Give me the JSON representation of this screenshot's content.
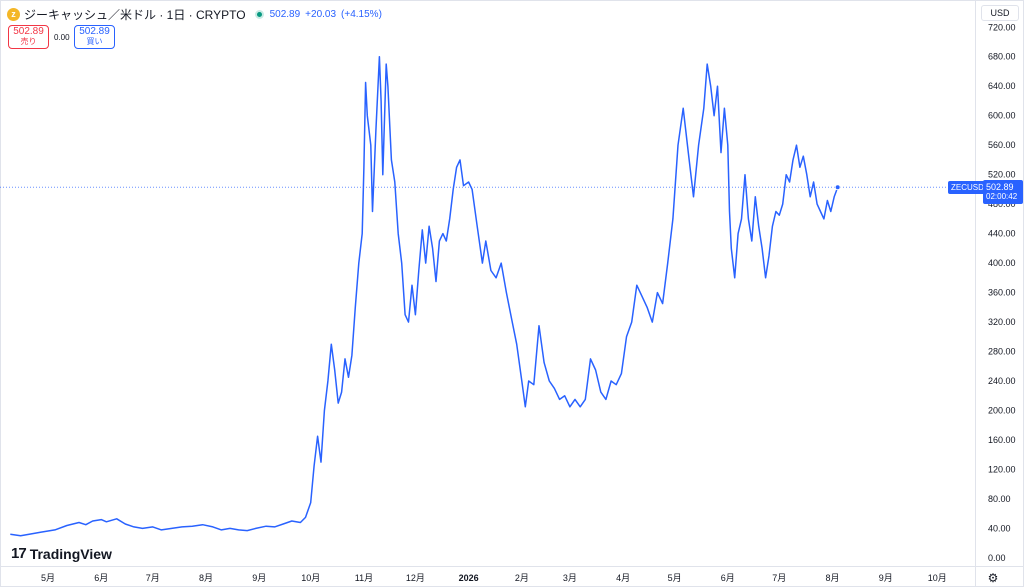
{
  "header": {
    "coin_icon": "zcash-coin-icon",
    "symbol_title": "ジーキャッシュ／米ドル · 1日 · CRYPTO",
    "last_price": "502.89",
    "change": "+20.03",
    "change_pct": "(+4.15%)",
    "sell_price": "502.89",
    "sell_label": "売り",
    "spread": "0.00",
    "buy_price": "502.89",
    "buy_label": "買い"
  },
  "price_axis": {
    "currency": "USD",
    "symbol_tag": "ZECUSD",
    "current_price": "502.89",
    "countdown": "02:00:42"
  },
  "branding": {
    "logo_mark": "17",
    "logo_text": "TradingView"
  },
  "colors": {
    "line": "#2962ff",
    "sell": "#f23645",
    "buy": "#2962ff",
    "status": "#089981",
    "coin": "#f4b728"
  },
  "settings_icon": "settings-icon",
  "chart_data": {
    "type": "line",
    "title": "ジーキャッシュ／米ドル · 1日 · CRYPTO",
    "xlabel": "",
    "ylabel": "",
    "ylim": [
      -11,
      757
    ],
    "y_ticks": [
      "0.00",
      "40.00",
      "80.00",
      "120.00",
      "160.00",
      "200.00",
      "240.00",
      "280.00",
      "320.00",
      "360.00",
      "400.00",
      "440.00",
      "480.00",
      "520.00",
      "560.00",
      "600.00",
      "640.00",
      "680.00",
      "720.00"
    ],
    "x_ticks": [
      {
        "label": "5月",
        "date": "2025-05-01"
      },
      {
        "label": "6月",
        "date": "2025-06-01"
      },
      {
        "label": "7月",
        "date": "2025-07-01"
      },
      {
        "label": "8月",
        "date": "2025-08-01"
      },
      {
        "label": "9月",
        "date": "2025-09-01"
      },
      {
        "label": "10月",
        "date": "2025-10-01"
      },
      {
        "label": "11月",
        "date": "2025-11-01"
      },
      {
        "label": "12月",
        "date": "2025-12-01"
      },
      {
        "label": "2026",
        "date": "2026-01-01",
        "year": true
      },
      {
        "label": "2月",
        "date": "2026-02-01"
      },
      {
        "label": "3月",
        "date": "2026-03-01"
      },
      {
        "label": "4月",
        "date": "2026-04-01"
      },
      {
        "label": "5月",
        "date": "2026-05-01"
      },
      {
        "label": "6月",
        "date": "2026-06-01"
      },
      {
        "label": "7月",
        "date": "2026-07-01"
      },
      {
        "label": "8月",
        "date": "2026-08-01"
      },
      {
        "label": "9月",
        "date": "2026-09-01"
      },
      {
        "label": "10月",
        "date": "2026-10-01"
      }
    ],
    "grid": false,
    "last_value_line": 502.89,
    "series": [
      {
        "values": [
          [
            "2025-04-09",
            32
          ],
          [
            "2025-04-15",
            30
          ],
          [
            "2025-04-20",
            32
          ],
          [
            "2025-04-27",
            35
          ],
          [
            "2025-05-05",
            38
          ],
          [
            "2025-05-12",
            44
          ],
          [
            "2025-05-19",
            48
          ],
          [
            "2025-05-23",
            45
          ],
          [
            "2025-05-27",
            50
          ],
          [
            "2025-06-01",
            52
          ],
          [
            "2025-06-04",
            49
          ],
          [
            "2025-06-10",
            53
          ],
          [
            "2025-06-15",
            46
          ],
          [
            "2025-06-20",
            42
          ],
          [
            "2025-06-25",
            40
          ],
          [
            "2025-07-01",
            42
          ],
          [
            "2025-07-06",
            38
          ],
          [
            "2025-07-12",
            40
          ],
          [
            "2025-07-18",
            42
          ],
          [
            "2025-07-24",
            43
          ],
          [
            "2025-07-30",
            45
          ],
          [
            "2025-08-05",
            42
          ],
          [
            "2025-08-10",
            38
          ],
          [
            "2025-08-15",
            40
          ],
          [
            "2025-08-20",
            38
          ],
          [
            "2025-08-25",
            37
          ],
          [
            "2025-08-30",
            40
          ],
          [
            "2025-09-05",
            43
          ],
          [
            "2025-09-10",
            42
          ],
          [
            "2025-09-15",
            46
          ],
          [
            "2025-09-20",
            50
          ],
          [
            "2025-09-25",
            48
          ],
          [
            "2025-09-28",
            55
          ],
          [
            "2025-10-01",
            75
          ],
          [
            "2025-10-03",
            125
          ],
          [
            "2025-10-05",
            165
          ],
          [
            "2025-10-07",
            130
          ],
          [
            "2025-10-09",
            200
          ],
          [
            "2025-10-11",
            240
          ],
          [
            "2025-10-13",
            290
          ],
          [
            "2025-10-15",
            255
          ],
          [
            "2025-10-17",
            210
          ],
          [
            "2025-10-19",
            225
          ],
          [
            "2025-10-21",
            270
          ],
          [
            "2025-10-23",
            245
          ],
          [
            "2025-10-25",
            275
          ],
          [
            "2025-10-27",
            340
          ],
          [
            "2025-10-29",
            400
          ],
          [
            "2025-10-31",
            440
          ],
          [
            "2025-11-01",
            530
          ],
          [
            "2025-11-02",
            645
          ],
          [
            "2025-11-03",
            600
          ],
          [
            "2025-11-05",
            560
          ],
          [
            "2025-11-06",
            470
          ],
          [
            "2025-11-08",
            580
          ],
          [
            "2025-11-10",
            680
          ],
          [
            "2025-11-11",
            620
          ],
          [
            "2025-11-12",
            520
          ],
          [
            "2025-11-14",
            670
          ],
          [
            "2025-11-15",
            640
          ],
          [
            "2025-11-17",
            540
          ],
          [
            "2025-11-19",
            510
          ],
          [
            "2025-11-21",
            440
          ],
          [
            "2025-11-23",
            400
          ],
          [
            "2025-11-25",
            330
          ],
          [
            "2025-11-27",
            320
          ],
          [
            "2025-11-29",
            370
          ],
          [
            "2025-12-01",
            330
          ],
          [
            "2025-12-03",
            390
          ],
          [
            "2025-12-05",
            445
          ],
          [
            "2025-12-07",
            400
          ],
          [
            "2025-12-09",
            450
          ],
          [
            "2025-12-11",
            420
          ],
          [
            "2025-12-13",
            375
          ],
          [
            "2025-12-15",
            430
          ],
          [
            "2025-12-17",
            440
          ],
          [
            "2025-12-19",
            430
          ],
          [
            "2025-12-21",
            460
          ],
          [
            "2025-12-23",
            500
          ],
          [
            "2025-12-25",
            530
          ],
          [
            "2025-12-27",
            540
          ],
          [
            "2025-12-29",
            505
          ],
          [
            "2026-01-01",
            510
          ],
          [
            "2026-01-03",
            500
          ],
          [
            "2026-01-06",
            450
          ],
          [
            "2026-01-09",
            400
          ],
          [
            "2026-01-11",
            430
          ],
          [
            "2026-01-14",
            390
          ],
          [
            "2026-01-17",
            380
          ],
          [
            "2026-01-20",
            400
          ],
          [
            "2026-01-23",
            360
          ],
          [
            "2026-01-26",
            325
          ],
          [
            "2026-01-29",
            290
          ],
          [
            "2026-02-01",
            240
          ],
          [
            "2026-02-03",
            205
          ],
          [
            "2026-02-05",
            240
          ],
          [
            "2026-02-08",
            235
          ],
          [
            "2026-02-11",
            315
          ],
          [
            "2026-02-14",
            265
          ],
          [
            "2026-02-17",
            240
          ],
          [
            "2026-02-20",
            230
          ],
          [
            "2026-02-23",
            215
          ],
          [
            "2026-02-26",
            220
          ],
          [
            "2026-03-01",
            205
          ],
          [
            "2026-03-04",
            215
          ],
          [
            "2026-03-07",
            205
          ],
          [
            "2026-03-10",
            215
          ],
          [
            "2026-03-13",
            270
          ],
          [
            "2026-03-16",
            255
          ],
          [
            "2026-03-19",
            225
          ],
          [
            "2026-03-22",
            215
          ],
          [
            "2026-03-25",
            240
          ],
          [
            "2026-03-28",
            235
          ],
          [
            "2026-03-31",
            250
          ],
          [
            "2026-04-03",
            300
          ],
          [
            "2026-04-06",
            320
          ],
          [
            "2026-04-09",
            370
          ],
          [
            "2026-04-12",
            355
          ],
          [
            "2026-04-15",
            340
          ],
          [
            "2026-04-18",
            320
          ],
          [
            "2026-04-21",
            360
          ],
          [
            "2026-04-24",
            345
          ],
          [
            "2026-04-27",
            400
          ],
          [
            "2026-04-30",
            460
          ],
          [
            "2026-05-03",
            560
          ],
          [
            "2026-05-06",
            610
          ],
          [
            "2026-05-09",
            550
          ],
          [
            "2026-05-12",
            490
          ],
          [
            "2026-05-15",
            560
          ],
          [
            "2026-05-18",
            610
          ],
          [
            "2026-05-20",
            670
          ],
          [
            "2026-05-22",
            640
          ],
          [
            "2026-05-24",
            600
          ],
          [
            "2026-05-26",
            640
          ],
          [
            "2026-05-28",
            550
          ],
          [
            "2026-05-30",
            610
          ],
          [
            "2026-06-01",
            560
          ],
          [
            "2026-06-02",
            470
          ],
          [
            "2026-06-03",
            420
          ],
          [
            "2026-06-05",
            380
          ],
          [
            "2026-06-07",
            440
          ],
          [
            "2026-06-09",
            460
          ],
          [
            "2026-06-11",
            520
          ],
          [
            "2026-06-13",
            460
          ],
          [
            "2026-06-15",
            430
          ],
          [
            "2026-06-17",
            490
          ],
          [
            "2026-06-19",
            450
          ],
          [
            "2026-06-21",
            420
          ],
          [
            "2026-06-23",
            380
          ],
          [
            "2026-06-25",
            410
          ],
          [
            "2026-06-27",
            450
          ],
          [
            "2026-06-29",
            470
          ],
          [
            "2026-07-01",
            465
          ],
          [
            "2026-07-03",
            480
          ],
          [
            "2026-07-05",
            520
          ],
          [
            "2026-07-07",
            510
          ],
          [
            "2026-07-09",
            540
          ],
          [
            "2026-07-11",
            560
          ],
          [
            "2026-07-13",
            530
          ],
          [
            "2026-07-15",
            545
          ],
          [
            "2026-07-17",
            520
          ],
          [
            "2026-07-19",
            490
          ],
          [
            "2026-07-21",
            510
          ],
          [
            "2026-07-23",
            480
          ],
          [
            "2026-07-25",
            470
          ],
          [
            "2026-07-27",
            460
          ],
          [
            "2026-07-29",
            485
          ],
          [
            "2026-07-31",
            470
          ],
          [
            "2026-08-02",
            490
          ],
          [
            "2026-08-04",
            502.89
          ]
        ]
      }
    ]
  }
}
